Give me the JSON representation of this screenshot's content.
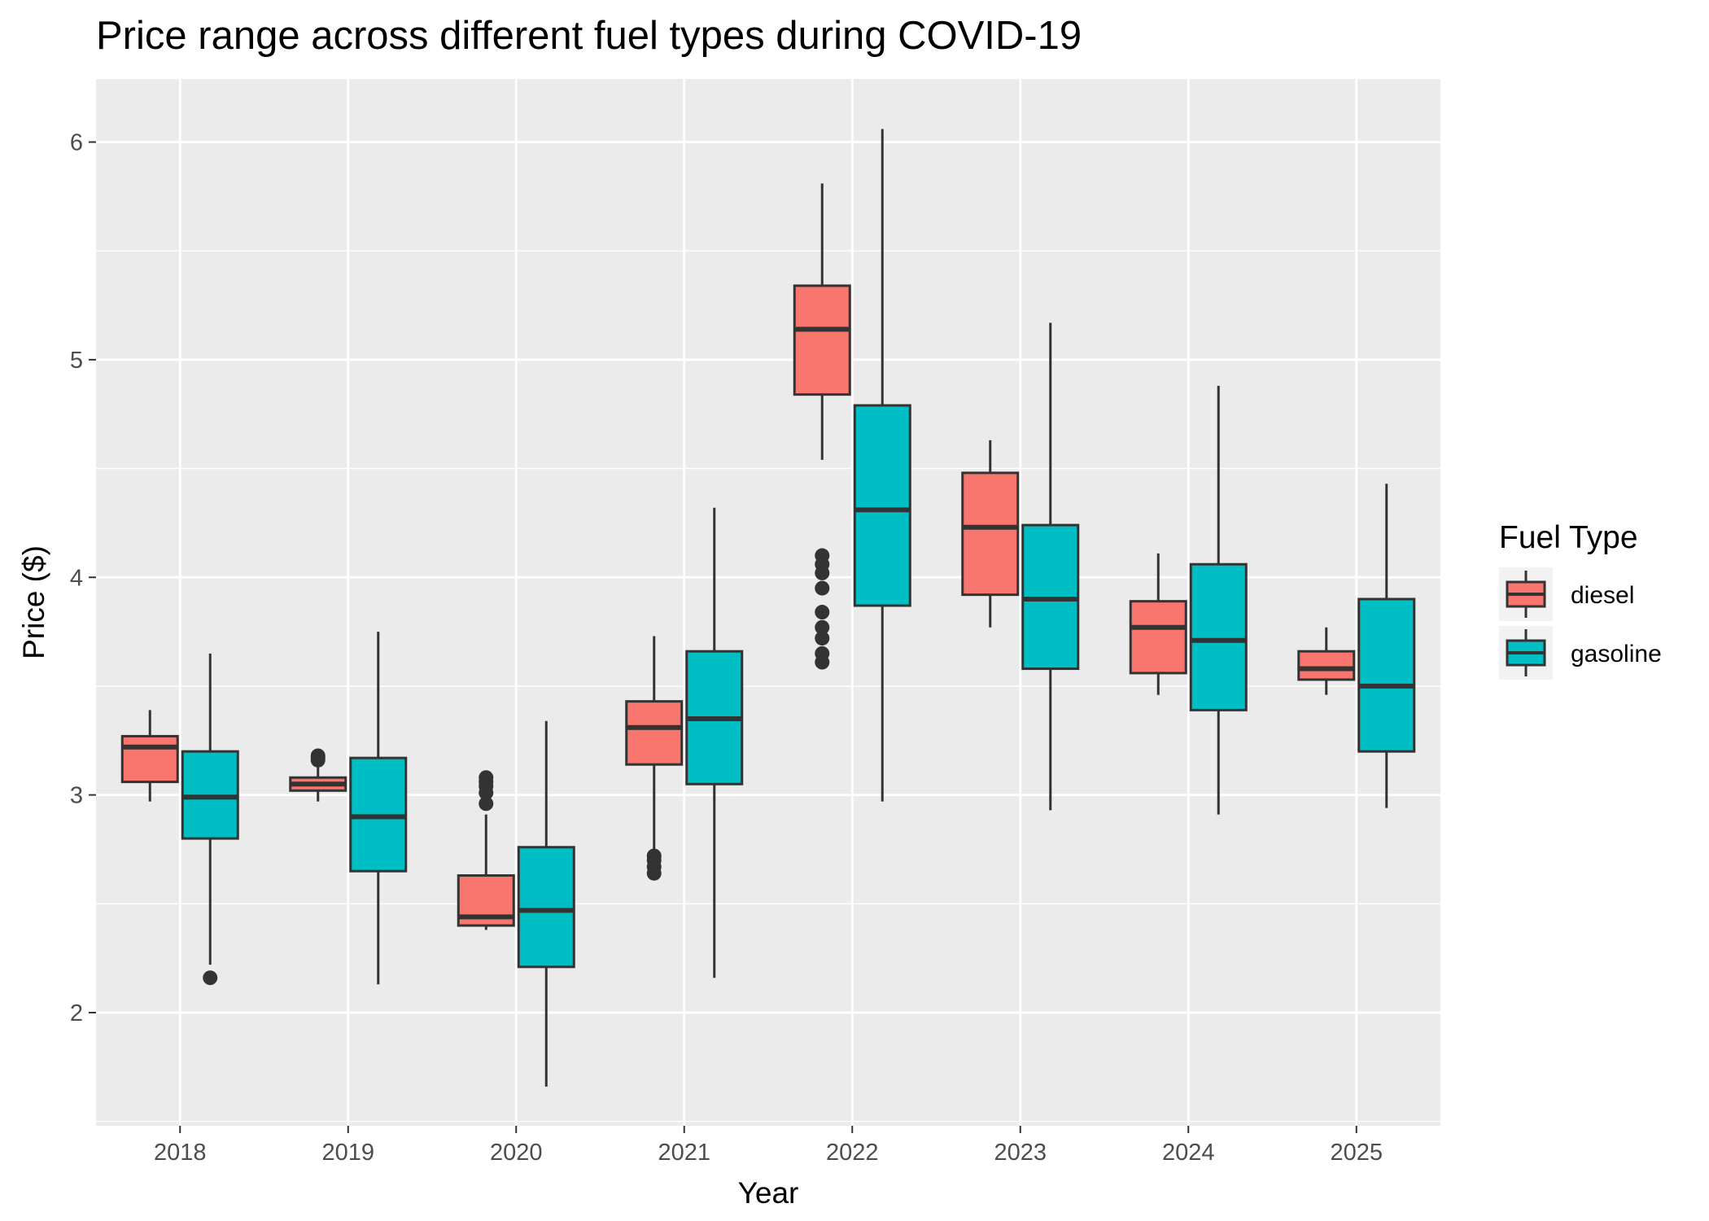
{
  "chart_data": {
    "type": "boxplot",
    "title": "Price range across different fuel types during COVID-19",
    "xlabel": "Year",
    "ylabel": "Price ($)",
    "categories": [
      "2018",
      "2019",
      "2020",
      "2021",
      "2022",
      "2023",
      "2024",
      "2025"
    ],
    "ylim": [
      1.48,
      6.29
    ],
    "yticks": [
      "2",
      "3",
      "4",
      "5",
      "6"
    ],
    "grid": true,
    "legend": {
      "title": "Fuel Type",
      "position": "right"
    },
    "series": [
      {
        "name": "diesel",
        "color": "#F8766D",
        "boxes": [
          {
            "category": "2018",
            "whisker_low": 2.97,
            "q1": 3.06,
            "median": 3.22,
            "q3": 3.27,
            "whisker_high": 3.39,
            "outliers": []
          },
          {
            "category": "2019",
            "whisker_low": 2.97,
            "q1": 3.02,
            "median": 3.05,
            "q3": 3.08,
            "whisker_high": 3.13,
            "outliers": [
              3.16,
              3.17,
              3.18
            ]
          },
          {
            "category": "2020",
            "whisker_low": 2.38,
            "q1": 2.4,
            "median": 2.44,
            "q3": 2.63,
            "whisker_high": 2.91,
            "outliers": [
              2.96,
              3.01,
              3.04,
              3.06,
              3.08
            ]
          },
          {
            "category": "2021",
            "whisker_low": 2.75,
            "q1": 3.14,
            "median": 3.31,
            "q3": 3.43,
            "whisker_high": 3.73,
            "outliers": [
              2.64,
              2.67,
              2.7,
              2.72
            ]
          },
          {
            "category": "2022",
            "whisker_low": 4.54,
            "q1": 4.84,
            "median": 5.14,
            "q3": 5.34,
            "whisker_high": 5.81,
            "outliers": [
              3.61,
              3.65,
              3.72,
              3.77,
              3.84,
              3.95,
              4.02,
              4.06,
              4.1
            ]
          },
          {
            "category": "2023",
            "whisker_low": 3.77,
            "q1": 3.92,
            "median": 4.23,
            "q3": 4.48,
            "whisker_high": 4.63,
            "outliers": []
          },
          {
            "category": "2024",
            "whisker_low": 3.46,
            "q1": 3.56,
            "median": 3.77,
            "q3": 3.89,
            "whisker_high": 4.11,
            "outliers": []
          },
          {
            "category": "2025",
            "whisker_low": 3.46,
            "q1": 3.53,
            "median": 3.58,
            "q3": 3.66,
            "whisker_high": 3.77,
            "outliers": []
          }
        ]
      },
      {
        "name": "gasoline",
        "color": "#00BFC4",
        "boxes": [
          {
            "category": "2018",
            "whisker_low": 2.22,
            "q1": 2.8,
            "median": 2.99,
            "q3": 3.2,
            "whisker_high": 3.65,
            "outliers": [
              2.16
            ]
          },
          {
            "category": "2019",
            "whisker_low": 2.13,
            "q1": 2.65,
            "median": 2.9,
            "q3": 3.17,
            "whisker_high": 3.75,
            "outliers": []
          },
          {
            "category": "2020",
            "whisker_low": 1.66,
            "q1": 2.21,
            "median": 2.47,
            "q3": 2.76,
            "whisker_high": 3.34,
            "outliers": []
          },
          {
            "category": "2021",
            "whisker_low": 2.16,
            "q1": 3.05,
            "median": 3.35,
            "q3": 3.66,
            "whisker_high": 4.32,
            "outliers": []
          },
          {
            "category": "2022",
            "whisker_low": 2.97,
            "q1": 3.87,
            "median": 4.31,
            "q3": 4.79,
            "whisker_high": 6.06,
            "outliers": []
          },
          {
            "category": "2023",
            "whisker_low": 2.93,
            "q1": 3.58,
            "median": 3.9,
            "q3": 4.24,
            "whisker_high": 5.17,
            "outliers": []
          },
          {
            "category": "2024",
            "whisker_low": 2.91,
            "q1": 3.39,
            "median": 3.71,
            "q3": 4.06,
            "whisker_high": 4.88,
            "outliers": []
          },
          {
            "category": "2025",
            "whisker_low": 2.94,
            "q1": 3.2,
            "median": 3.5,
            "q3": 3.9,
            "whisker_high": 4.43,
            "outliers": []
          }
        ]
      }
    ]
  }
}
